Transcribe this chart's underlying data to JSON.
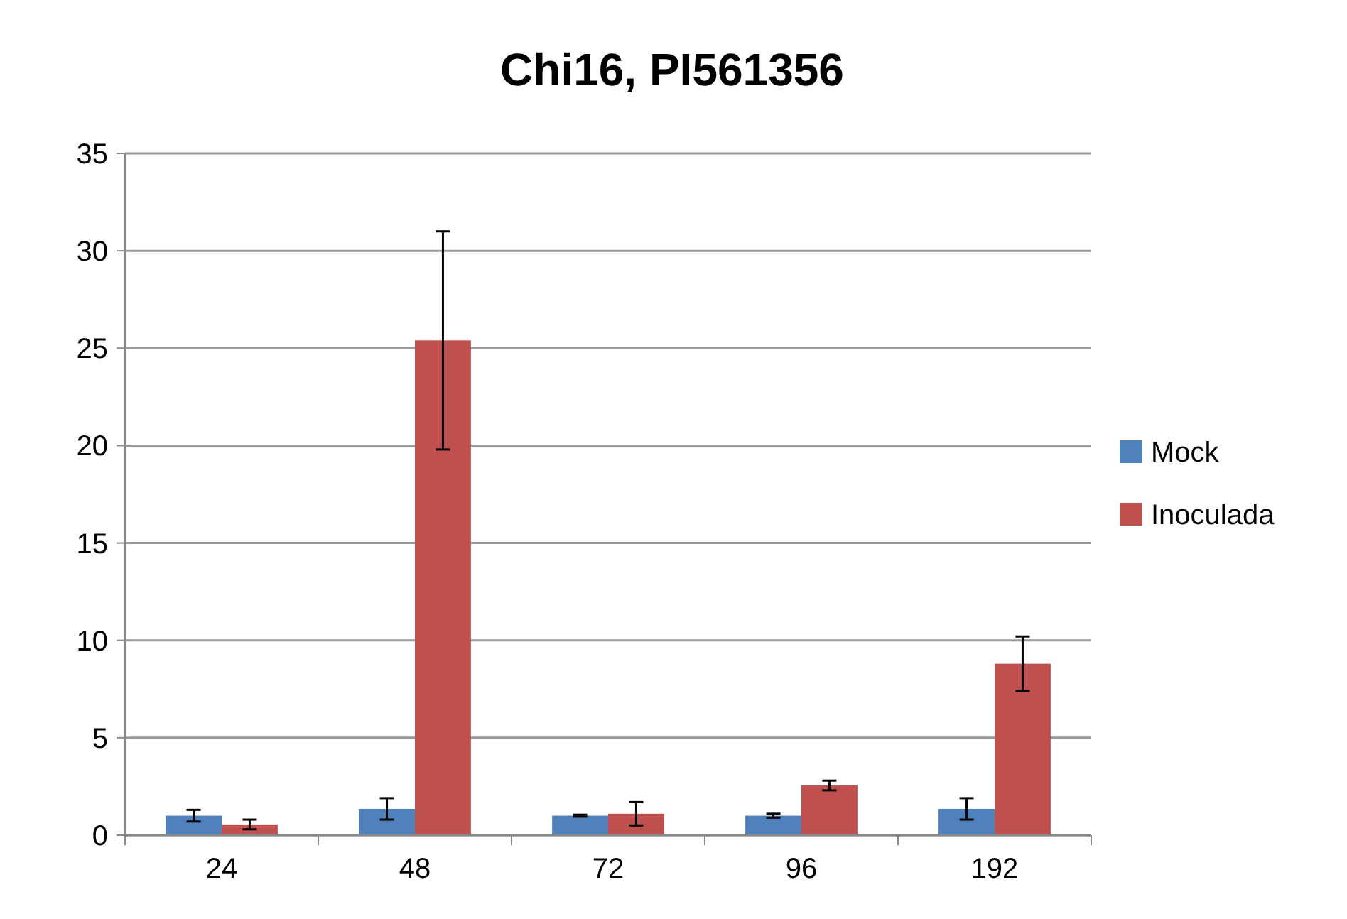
{
  "chart_data": {
    "type": "bar",
    "title": "Chi16, PI561356",
    "categories": [
      "24",
      "48",
      "72",
      "96",
      "192"
    ],
    "series": [
      {
        "name": "Mock",
        "color": "#4f81bd",
        "values": [
          1.0,
          1.35,
          1.0,
          1.0,
          1.35
        ],
        "errors": [
          0.3,
          0.55,
          0.05,
          0.1,
          0.55
        ]
      },
      {
        "name": "Inoculada",
        "color": "#c0504d",
        "values": [
          0.55,
          25.4,
          1.1,
          2.55,
          8.8
        ],
        "errors": [
          0.25,
          [
            19.8,
            31.0
          ],
          0.6,
          0.25,
          [
            7.4,
            10.2
          ]
        ]
      }
    ],
    "ylim": [
      0,
      35
    ],
    "yticks": [
      0,
      5,
      10,
      15,
      20,
      25,
      30,
      35
    ],
    "grid": "y",
    "legend": "right"
  }
}
